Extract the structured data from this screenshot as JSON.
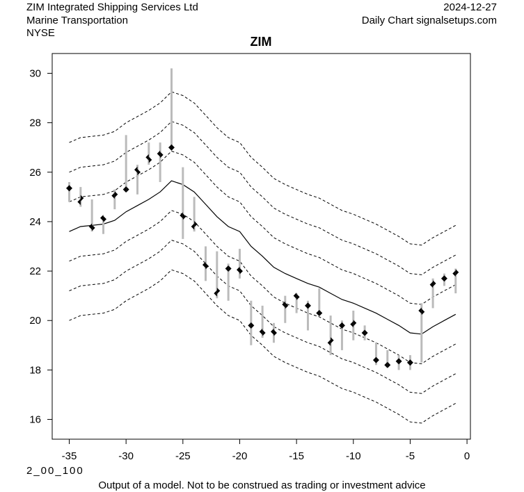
{
  "header": {
    "company": "ZIM Integrated Shipping Services Ltd",
    "sector": "Marine Transportation",
    "exchange": "NYSE",
    "date": "2024-12-27",
    "source": "Daily Chart signalsetups.com"
  },
  "footer": {
    "code": "2_00_100",
    "disclaimer": "Output of a model. Not to be construed as trading or investment advice"
  },
  "chart_data": {
    "type": "ohlc",
    "title": "ZIM",
    "xlabel": "",
    "ylabel": "",
    "xlim": [
      -36.5,
      0.3
    ],
    "ylim": [
      15.2,
      30.8
    ],
    "xticks": [
      -35,
      -30,
      -25,
      -20,
      -15,
      -10,
      -5,
      0
    ],
    "yticks": [
      16,
      18,
      20,
      22,
      24,
      26,
      28,
      30
    ],
    "grid": false,
    "colors": {
      "range_bar": "#bbbbbb",
      "marker": "#000000",
      "line": "#000000"
    },
    "bars": [
      {
        "x": -35,
        "high": 25.6,
        "low": 24.8,
        "open": 25.35,
        "close": 25.35
      },
      {
        "x": -34,
        "high": 25.4,
        "low": 24.6,
        "open": 24.95,
        "close": 24.8
      },
      {
        "x": -33,
        "high": 24.9,
        "low": 23.6,
        "open": 23.75,
        "close": 23.8
      },
      {
        "x": -32,
        "high": 24.2,
        "low": 23.5,
        "open": 24.1,
        "close": 24.15
      },
      {
        "x": -31,
        "high": 25.3,
        "low": 24.5,
        "open": 25.1,
        "close": 25.05
      },
      {
        "x": -30,
        "high": 27.5,
        "low": 25.2,
        "open": 25.3,
        "close": 25.3
      },
      {
        "x": -29,
        "high": 26.3,
        "low": 25.1,
        "open": 26.0,
        "close": 26.1
      },
      {
        "x": -28,
        "high": 27.2,
        "low": 26.3,
        "open": 26.5,
        "close": 26.6
      },
      {
        "x": -27,
        "high": 27.2,
        "low": 25.6,
        "open": 26.7,
        "close": 26.75
      },
      {
        "x": -26,
        "high": 30.2,
        "low": 26.9,
        "open": 27.0,
        "close": 27.0
      },
      {
        "x": -25,
        "high": 26.2,
        "low": 23.3,
        "open": 24.2,
        "close": 24.25
      },
      {
        "x": -24,
        "high": 25.0,
        "low": 23.6,
        "open": 23.9,
        "close": 23.8
      },
      {
        "x": -23,
        "high": 23.0,
        "low": 21.6,
        "open": 22.2,
        "close": 22.25
      },
      {
        "x": -22,
        "high": 22.8,
        "low": 20.9,
        "open": 21.2,
        "close": 21.1
      },
      {
        "x": -21,
        "high": 22.3,
        "low": 20.8,
        "open": 22.1,
        "close": 22.1
      },
      {
        "x": -20,
        "high": 22.9,
        "low": 21.7,
        "open": 22.0,
        "close": 22.05
      },
      {
        "x": -19,
        "high": 20.8,
        "low": 19.0,
        "open": 19.8,
        "close": 19.8
      },
      {
        "x": -18,
        "high": 20.6,
        "low": 19.3,
        "open": 19.5,
        "close": 19.55
      },
      {
        "x": -17,
        "high": 19.9,
        "low": 19.1,
        "open": 19.5,
        "close": 19.55
      },
      {
        "x": -16,
        "high": 21.0,
        "low": 19.9,
        "open": 20.6,
        "close": 20.65
      },
      {
        "x": -15,
        "high": 21.1,
        "low": 20.3,
        "open": 20.95,
        "close": 21.0
      },
      {
        "x": -14,
        "high": 20.8,
        "low": 19.6,
        "open": 20.6,
        "close": 20.6
      },
      {
        "x": -13,
        "high": 21.3,
        "low": 20.2,
        "open": 20.3,
        "close": 20.3
      },
      {
        "x": -12,
        "high": 20.2,
        "low": 18.6,
        "open": 19.2,
        "close": 19.1
      },
      {
        "x": -11,
        "high": 20.0,
        "low": 18.8,
        "open": 19.8,
        "close": 19.8
      },
      {
        "x": -10,
        "high": 20.4,
        "low": 19.2,
        "open": 19.9,
        "close": 19.85
      },
      {
        "x": -9,
        "high": 19.8,
        "low": 19.2,
        "open": 19.5,
        "close": 19.5
      },
      {
        "x": -8,
        "high": 19.1,
        "low": 18.2,
        "open": 18.4,
        "close": 18.4
      },
      {
        "x": -7,
        "high": 18.8,
        "low": 18.1,
        "open": 18.2,
        "close": 18.2
      },
      {
        "x": -6,
        "high": 18.6,
        "low": 18.0,
        "open": 18.35,
        "close": 18.35
      },
      {
        "x": -5,
        "high": 18.6,
        "low": 18.0,
        "open": 18.3,
        "close": 18.3
      },
      {
        "x": -4,
        "high": 20.7,
        "low": 18.3,
        "open": 20.35,
        "close": 20.4
      },
      {
        "x": -3,
        "high": 21.7,
        "low": 20.5,
        "open": 21.5,
        "close": 21.45
      },
      {
        "x": -2,
        "high": 21.9,
        "low": 21.4,
        "open": 21.7,
        "close": 21.7
      },
      {
        "x": -1,
        "high": 22.1,
        "low": 21.1,
        "open": 21.95,
        "close": 21.9
      }
    ],
    "center_line": {
      "x": [
        -35,
        -34,
        -33,
        -32,
        -31,
        -30,
        -29,
        -28,
        -27,
        -26,
        -25,
        -24,
        -23,
        -22,
        -21,
        -20,
        -19,
        -18,
        -17,
        -16,
        -15,
        -14,
        -13,
        -12,
        -11,
        -10,
        -9,
        -8,
        -7,
        -6,
        -5,
        -4,
        -3,
        -2,
        -1
      ],
      "y": [
        23.6,
        23.8,
        23.85,
        23.9,
        24.05,
        24.4,
        24.65,
        24.9,
        25.2,
        25.65,
        25.5,
        25.2,
        24.7,
        24.2,
        23.8,
        23.6,
        23.0,
        22.6,
        22.15,
        21.9,
        21.7,
        21.5,
        21.35,
        21.1,
        20.85,
        20.7,
        20.5,
        20.3,
        20.05,
        19.8,
        19.5,
        19.45,
        19.75,
        20.0,
        20.25
      ]
    },
    "band_offsets": [
      -3.6,
      -2.4,
      -1.2,
      1.2,
      2.4,
      3.6
    ]
  }
}
